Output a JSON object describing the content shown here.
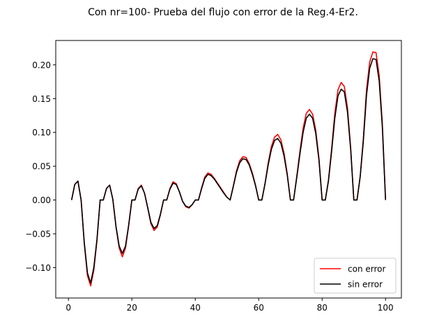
{
  "chart_data": {
    "type": "line",
    "title": "Con nr=100- Prueba del flujo con error de la Reg.4-Er2.",
    "xlabel": "",
    "ylabel": "",
    "xlim": [
      -4,
      105
    ],
    "ylim": [
      -0.145,
      0.236
    ],
    "xticks": [
      0,
      20,
      40,
      60,
      80,
      100
    ],
    "xtick_labels": [
      "0",
      "20",
      "40",
      "60",
      "80",
      "100"
    ],
    "yticks": [
      -0.1,
      -0.05,
      0.0,
      0.05,
      0.1,
      0.15,
      0.2
    ],
    "ytick_labels": [
      "−0.10",
      "−0.05",
      "0.00",
      "0.05",
      "0.10",
      "0.15",
      "0.20"
    ],
    "grid": false,
    "legend_position": "lower-right",
    "x": [
      1,
      2,
      3,
      4,
      5,
      6,
      7,
      8,
      9,
      10,
      11,
      12,
      13,
      14,
      15,
      16,
      17,
      18,
      19,
      20,
      21,
      22,
      23,
      24,
      25,
      26,
      27,
      28,
      29,
      30,
      31,
      32,
      33,
      34,
      35,
      36,
      37,
      38,
      39,
      40,
      41,
      42,
      43,
      44,
      45,
      46,
      47,
      48,
      49,
      50,
      51,
      52,
      53,
      54,
      55,
      56,
      57,
      58,
      59,
      60,
      61,
      62,
      63,
      64,
      65,
      66,
      67,
      68,
      69,
      70,
      71,
      72,
      73,
      74,
      75,
      76,
      77,
      78,
      79,
      80,
      81,
      82,
      83,
      84,
      85,
      86,
      87,
      88,
      89,
      90,
      91,
      92,
      93,
      94,
      95,
      96,
      97,
      98,
      99,
      100
    ],
    "series": [
      {
        "name": "con error",
        "color": "#ff0000",
        "values": [
          0,
          0.023,
          0.028,
          0,
          -0.065,
          -0.112,
          -0.127,
          -0.104,
          -0.06,
          0,
          0,
          0.017,
          0.022,
          0.001,
          -0.04,
          -0.071,
          -0.084,
          -0.071,
          -0.038,
          0,
          0,
          0.017,
          0.022,
          0.01,
          -0.012,
          -0.035,
          -0.045,
          -0.04,
          -0.022,
          0,
          0,
          0.017,
          0.027,
          0.024,
          0.012,
          -0.002,
          -0.01,
          -0.012,
          -0.007,
          0,
          0,
          0.018,
          0.034,
          0.04,
          0.038,
          0.032,
          0.025,
          0.018,
          0.011,
          0.004,
          0,
          0.021,
          0.043,
          0.058,
          0.064,
          0.063,
          0.054,
          0.04,
          0.022,
          0,
          0,
          0.025,
          0.055,
          0.079,
          0.093,
          0.097,
          0.089,
          0.069,
          0.039,
          0,
          0,
          0.035,
          0.072,
          0.106,
          0.128,
          0.134,
          0.127,
          0.103,
          0.062,
          0,
          0,
          0.03,
          0.076,
          0.128,
          0.163,
          0.174,
          0.168,
          0.136,
          0.078,
          0,
          0,
          0.035,
          0.091,
          0.163,
          0.204,
          0.219,
          0.218,
          0.184,
          0.112,
          0
        ]
      },
      {
        "name": "sin error",
        "color": "#000000",
        "values": [
          0,
          0.023,
          0.028,
          0,
          -0.063,
          -0.108,
          -0.123,
          -0.1,
          -0.058,
          0,
          0,
          0.017,
          0.022,
          0.001,
          -0.039,
          -0.068,
          -0.079,
          -0.068,
          -0.037,
          0,
          0,
          0.016,
          0.021,
          0.01,
          -0.011,
          -0.033,
          -0.042,
          -0.038,
          -0.021,
          0,
          0,
          0.016,
          0.025,
          0.023,
          0.012,
          -0.002,
          -0.009,
          -0.011,
          -0.007,
          0,
          0,
          0.017,
          0.032,
          0.038,
          0.036,
          0.031,
          0.024,
          0.017,
          0.01,
          0.004,
          0,
          0.02,
          0.041,
          0.055,
          0.061,
          0.06,
          0.052,
          0.038,
          0.021,
          0,
          0,
          0.024,
          0.052,
          0.075,
          0.088,
          0.091,
          0.084,
          0.065,
          0.037,
          0,
          0,
          0.033,
          0.068,
          0.1,
          0.121,
          0.127,
          0.121,
          0.098,
          0.059,
          0,
          0,
          0.028,
          0.072,
          0.121,
          0.154,
          0.164,
          0.16,
          0.13,
          0.075,
          0,
          0,
          0.034,
          0.087,
          0.155,
          0.195,
          0.209,
          0.208,
          0.176,
          0.107,
          0
        ]
      }
    ]
  }
}
